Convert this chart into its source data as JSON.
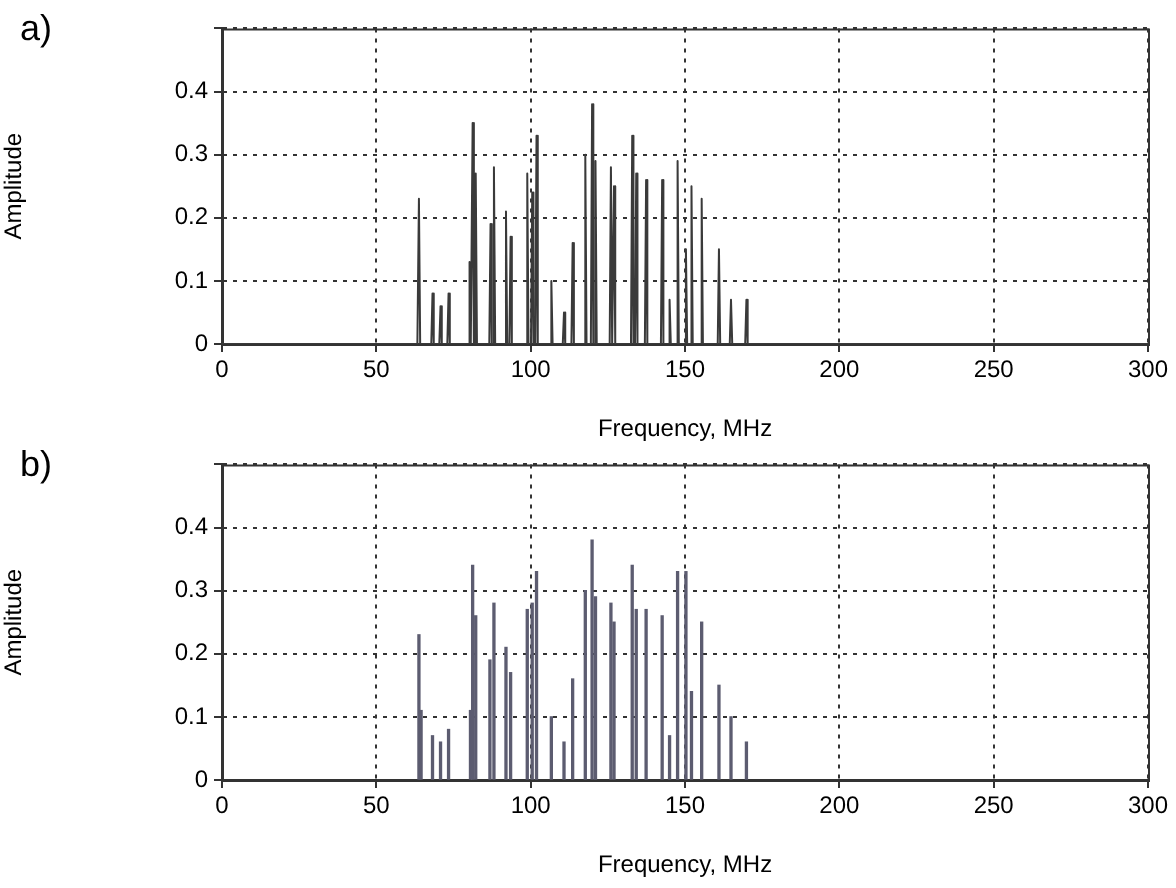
{
  "chart_data": [
    {
      "type": "line",
      "title": "a)",
      "xlabel": "Frequency, MHz",
      "ylabel": "Amplitude",
      "xlim": [
        0,
        300
      ],
      "xticks": [
        0,
        50,
        100,
        150,
        200,
        250,
        300
      ],
      "ylim": [
        0,
        0.5
      ],
      "yticks": [
        0,
        0.1,
        0.2,
        0.3,
        0.4,
        {
          "value": 0.5,
          "label": null
        }
      ],
      "grid": true,
      "color": "#3a3a3a",
      "x": [
        0,
        63.3,
        63.8,
        64.2,
        67.8,
        68.2,
        68.6,
        70.4,
        70.8,
        71.2,
        73.0,
        73.4,
        73.8,
        79.8,
        80.2,
        80.6,
        80.8,
        81.2,
        81.6,
        81.8,
        82.2,
        82.6,
        86.6,
        87,
        87.4,
        87.7,
        88.1,
        88.5,
        91.6,
        92,
        92.4,
        93.1,
        93.5,
        93.9,
        98.5,
        98.9,
        99.3,
        100.1,
        100.5,
        100.9,
        101.5,
        101.9,
        102.3,
        106.3,
        106.7,
        107.1,
        110.4,
        110.8,
        111.2,
        113.2,
        113.6,
        114,
        117.3,
        117.7,
        118.1,
        119.5,
        119.9,
        120.3,
        120.6,
        121,
        121.4,
        125.6,
        126,
        126.4,
        126.6,
        127,
        127.4,
        132.5,
        132.9,
        133.3,
        133.8,
        134.2,
        134.6,
        137,
        137.4,
        137.8,
        142.2,
        142.6,
        143,
        144.6,
        145,
        145.4,
        147.2,
        147.6,
        148,
        149.9,
        150.3,
        150.7,
        151.7,
        152.1,
        152.5,
        155,
        155.4,
        155.8,
        160.6,
        161,
        161.4,
        164.5,
        164.9,
        165.3,
        169.5,
        169.9,
        170.3,
        300
      ],
      "values": [
        0,
        0,
        0.23,
        0,
        0,
        0.08,
        0,
        0,
        0.06,
        0,
        0,
        0.08,
        0,
        0,
        0.13,
        0,
        0,
        0.35,
        0,
        0,
        0.27,
        0,
        0,
        0.19,
        0,
        0,
        0.28,
        0,
        0,
        0.21,
        0,
        0,
        0.17,
        0,
        0,
        0.27,
        0,
        0,
        0.24,
        0,
        0,
        0.33,
        0,
        0,
        0.1,
        0,
        0,
        0.05,
        0,
        0,
        0.16,
        0,
        0,
        0.3,
        0,
        0,
        0.38,
        0,
        0,
        0.29,
        0,
        0,
        0.28,
        0,
        0,
        0.25,
        0,
        0,
        0.33,
        0,
        0,
        0.27,
        0,
        0,
        0.26,
        0,
        0,
        0.26,
        0,
        0,
        0.07,
        0,
        0,
        0.29,
        0,
        0,
        0.15,
        0,
        0,
        0.25,
        0,
        0,
        0.23,
        0,
        0,
        0.15,
        0,
        0,
        0.07,
        0,
        0,
        0.07,
        0,
        0
      ]
    },
    {
      "type": "bar",
      "title": "b)",
      "xlabel": "Frequency, MHz",
      "ylabel": "Amplitude",
      "xlim": [
        0,
        300
      ],
      "xticks": [
        0,
        50,
        100,
        150,
        200,
        250,
        300
      ],
      "ylim": [
        0,
        0.5
      ],
      "yticks": [
        0,
        0.1,
        0.2,
        0.3,
        0.4,
        {
          "value": 0.5,
          "label": null
        }
      ],
      "grid": true,
      "color": "#5c5c70",
      "x": [
        63.8,
        64.5,
        68.2,
        70.8,
        73.4,
        80.5,
        81.2,
        82.2,
        86.8,
        88.1,
        92,
        93.5,
        98.9,
        100.5,
        101.9,
        106.7,
        110.8,
        113.6,
        117.7,
        119.9,
        121,
        126,
        127,
        132.9,
        134.2,
        137.4,
        142.6,
        145,
        147.6,
        150.3,
        152.1,
        155.4,
        161,
        164.9,
        169.9
      ],
      "values": [
        0.23,
        0.11,
        0.07,
        0.06,
        0.08,
        0.11,
        0.34,
        0.26,
        0.19,
        0.28,
        0.21,
        0.17,
        0.27,
        0.28,
        0.33,
        0.1,
        0.06,
        0.16,
        0.3,
        0.38,
        0.29,
        0.28,
        0.25,
        0.34,
        0.27,
        0.27,
        0.26,
        0.07,
        0.33,
        0.33,
        0.14,
        0.25,
        0.15,
        0.1,
        0.06
      ]
    }
  ]
}
